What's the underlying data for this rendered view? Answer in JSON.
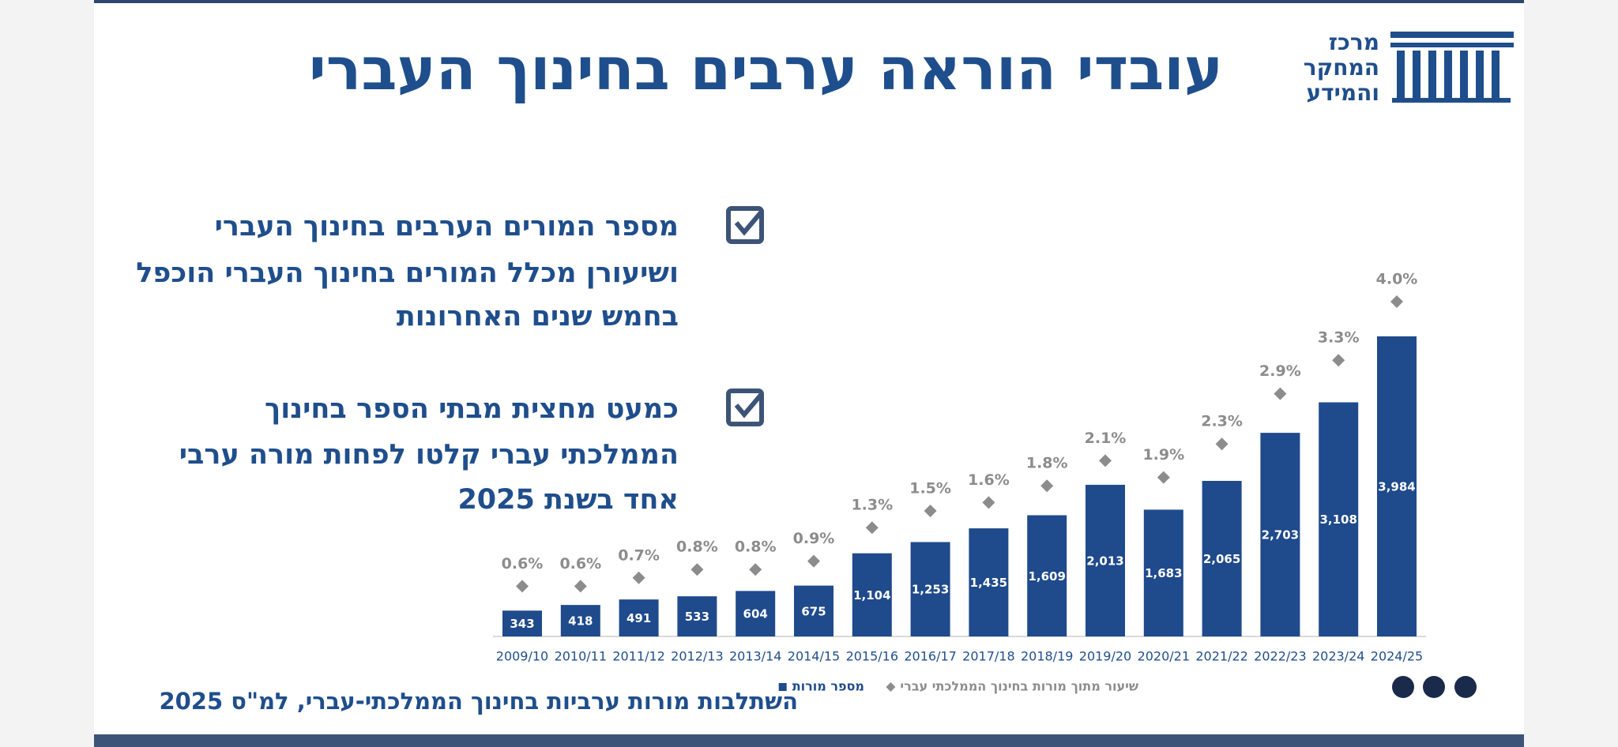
{
  "header": {
    "title": "עובדי הוראה ערבים בחינוך העברי",
    "logo": [
      "מרכז",
      "המחקר",
      "והמידע"
    ]
  },
  "bullets": [
    {
      "lines": [
        "מספר המורים הערבים בחינוך העברי",
        "ושיעורן מכלל המורים בחינוך העברי הוכפל",
        "בחמש שנים האחרונות"
      ]
    },
    {
      "lines": [
        "כמעט מחצית מבתי הספר בחינוך",
        "הממלכתי עברי קלטו לפחות מורה ערבי",
        "אחד בשנת 2025"
      ]
    }
  ],
  "chart_data": {
    "type": "bar",
    "caption": "השתלבות מורות ערביות בחינוך הממלכתי-עברי, למ\"ס 2025",
    "categories": [
      "2009/10",
      "2010/11",
      "2011/12",
      "2012/13",
      "2013/14",
      "2014/15",
      "2015/16",
      "2016/17",
      "2017/18",
      "2018/19",
      "2019/20",
      "2020/21",
      "2021/22",
      "2022/23",
      "2023/24",
      "2024/25"
    ],
    "series": [
      {
        "name": "מספר מורות",
        "color": "#1f4a8c",
        "values": [
          343,
          418,
          491,
          533,
          604,
          675,
          1104,
          1253,
          1435,
          1609,
          2013,
          1683,
          2065,
          2703,
          3108,
          3984
        ],
        "value_labels": [
          "343",
          "418",
          "491",
          "533",
          "604",
          "675",
          "1,104",
          "1,253",
          "1,435",
          "1,609",
          "2,013",
          "1,683",
          "2,065",
          "2,703",
          "3,108",
          "3,984"
        ]
      },
      {
        "name": "שיעור מתוך מורות בחינוך הממלכתי עברי",
        "color": "#8c8c8c",
        "axis": "y2",
        "values": [
          0.6,
          0.6,
          0.7,
          0.8,
          0.8,
          0.9,
          1.3,
          1.5,
          1.6,
          1.8,
          2.1,
          1.9,
          2.3,
          2.9,
          3.3,
          4.0
        ],
        "value_labels": [
          "0.6%",
          "0.6%",
          "0.7%",
          "0.8%",
          "0.8%",
          "0.9%",
          "1.3%",
          "1.5%",
          "1.6%",
          "1.8%",
          "2.1%",
          "1.9%",
          "2.3%",
          "2.9%",
          "3.3%",
          "4.0%"
        ]
      }
    ],
    "ylim": [
      0,
      5000
    ],
    "y2lim": [
      0,
      4.5
    ]
  }
}
